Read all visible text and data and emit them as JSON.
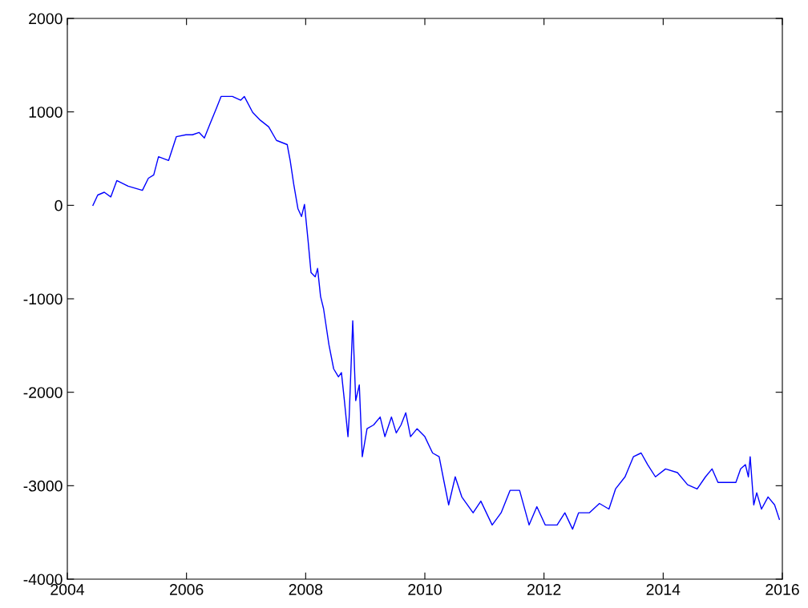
{
  "chart_data": {
    "type": "line",
    "xlim": [
      2004,
      2016
    ],
    "ylim": [
      -4000,
      2000
    ],
    "xticks": [
      2004,
      2006,
      2008,
      2010,
      2012,
      2014,
      2016
    ],
    "yticks": [
      -4000,
      -3000,
      -2000,
      -1000,
      0,
      1000,
      2000
    ],
    "grid": false,
    "marker": "none",
    "line_style": "solid",
    "series": [
      {
        "color": "#0000ff",
        "x": [
          2004.43,
          2004.51,
          2004.62,
          2004.73,
          2004.83,
          2005.02,
          2005.26,
          2005.36,
          2005.45,
          2005.53,
          2005.7,
          2005.83,
          2005.99,
          2006.1,
          2006.21,
          2006.3,
          2006.39,
          2006.5,
          2006.58,
          2006.77,
          2006.91,
          2006.97,
          2007.11,
          2007.24,
          2007.38,
          2007.51,
          2007.69,
          2007.74,
          2007.8,
          2007.87,
          2007.93,
          2007.98,
          2008.04,
          2008.09,
          2008.16,
          2008.2,
          2008.25,
          2008.3,
          2008.39,
          2008.47,
          2008.55,
          2008.6,
          2008.65,
          2008.71,
          2008.73,
          2008.79,
          2008.84,
          2008.9,
          2008.95,
          2009.03,
          2009.14,
          2009.25,
          2009.33,
          2009.44,
          2009.52,
          2009.6,
          2009.68,
          2009.76,
          2009.87,
          2010.0,
          2010.13,
          2010.24,
          2010.32,
          2010.4,
          2010.51,
          2010.62,
          2010.81,
          2010.94,
          2011.13,
          2011.28,
          2011.43,
          2011.59,
          2011.75,
          2011.88,
          2012.02,
          2012.22,
          2012.35,
          2012.48,
          2012.58,
          2012.76,
          2012.93,
          2013.09,
          2013.2,
          2013.36,
          2013.5,
          2013.63,
          2013.74,
          2013.87,
          2014.04,
          2014.24,
          2014.41,
          2014.57,
          2014.71,
          2014.82,
          2014.92,
          2015.05,
          2015.22,
          2015.3,
          2015.38,
          2015.43,
          2015.46,
          2015.52,
          2015.57,
          2015.65,
          2015.76,
          2015.87,
          2015.95
        ],
        "values": [
          0,
          110,
          140,
          90,
          265,
          205,
          160,
          290,
          325,
          520,
          480,
          735,
          755,
          755,
          780,
          720,
          865,
          1035,
          1165,
          1165,
          1125,
          1165,
          995,
          910,
          840,
          695,
          650,
          480,
          225,
          -35,
          -120,
          10,
          -375,
          -720,
          -765,
          -675,
          -975,
          -1105,
          -1490,
          -1750,
          -1835,
          -1790,
          -2090,
          -2475,
          -2265,
          -1235,
          -2090,
          -1920,
          -2690,
          -2390,
          -2350,
          -2265,
          -2475,
          -2265,
          -2435,
          -2350,
          -2220,
          -2475,
          -2390,
          -2475,
          -2650,
          -2690,
          -2950,
          -3205,
          -2905,
          -3120,
          -3290,
          -3165,
          -3420,
          -3290,
          -3050,
          -3050,
          -3420,
          -3225,
          -3420,
          -3420,
          -3290,
          -3465,
          -3290,
          -3290,
          -3190,
          -3250,
          -3035,
          -2905,
          -2690,
          -2650,
          -2775,
          -2905,
          -2820,
          -2860,
          -2990,
          -3035,
          -2905,
          -2820,
          -2965,
          -2965,
          -2965,
          -2820,
          -2775,
          -2905,
          -2690,
          -3205,
          -3075,
          -3250,
          -3120,
          -3205,
          -3360
        ]
      }
    ]
  }
}
